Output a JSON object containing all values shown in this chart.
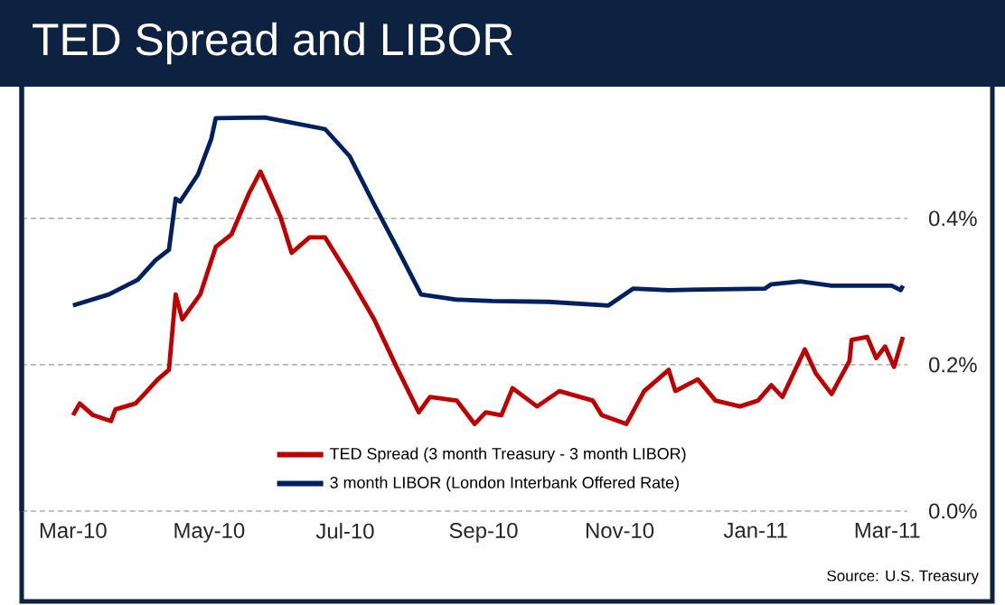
{
  "chart_data": {
    "type": "line",
    "title": "TED Spread and LIBOR",
    "annotations": [
      "Source: U.S. Treasury"
    ],
    "series": [
      {
        "name": "TED Spread (3 month Treasury - 3 month LIBOR)",
        "color": "#c00000",
        "x": [
          "2010-03-01",
          "2010-03-04",
          "2010-03-10",
          "2010-03-18",
          "2010-03-20",
          "2010-03-29",
          "2010-04-02",
          "2010-04-08",
          "2010-04-13",
          "2010-04-16",
          "2010-04-19",
          "2010-04-27",
          "2010-05-04",
          "2010-05-11",
          "2010-05-19",
          "2010-05-24",
          "2010-05-27",
          "2010-06-02",
          "2010-06-07",
          "2010-06-15",
          "2010-06-22",
          "2010-07-03",
          "2010-07-14",
          "2010-07-24",
          "2010-08-03",
          "2010-08-08",
          "2010-08-20",
          "2010-08-28",
          "2010-09-02",
          "2010-09-09",
          "2010-09-14",
          "2010-09-25",
          "2010-10-05",
          "2010-10-20",
          "2010-10-24",
          "2010-11-04",
          "2010-11-12",
          "2010-11-23",
          "2010-11-26",
          "2010-12-06",
          "2010-12-14",
          "2010-12-25",
          "2011-01-02",
          "2011-01-08",
          "2011-01-13",
          "2011-01-23",
          "2011-01-28",
          "2011-02-04",
          "2011-02-12",
          "2011-02-13",
          "2011-02-20",
          "2011-02-24",
          "2011-02-28",
          "2011-03-04",
          "2011-03-08"
        ],
        "values": [
          0.131,
          0.147,
          0.131,
          0.123,
          0.139,
          0.147,
          0.16,
          0.18,
          0.193,
          0.296,
          0.262,
          0.296,
          0.361,
          0.378,
          0.435,
          0.464,
          0.444,
          0.402,
          0.353,
          0.374,
          0.374,
          0.32,
          0.262,
          0.197,
          0.135,
          0.156,
          0.151,
          0.119,
          0.135,
          0.131,
          0.168,
          0.143,
          0.164,
          0.151,
          0.131,
          0.119,
          0.164,
          0.193,
          0.164,
          0.18,
          0.151,
          0.143,
          0.151,
          0.172,
          0.156,
          0.221,
          0.188,
          0.16,
          0.205,
          0.234,
          0.238,
          0.209,
          0.225,
          0.197,
          0.238
        ]
      },
      {
        "name": "3 month LIBOR (London Interbank Offered Rate)",
        "color": "#002060",
        "x": [
          "2010-03-01",
          "2010-03-17",
          "2010-03-30",
          "2010-04-07",
          "2010-04-13",
          "2010-04-16",
          "2010-04-18",
          "2010-04-26",
          "2010-05-02",
          "2010-05-04",
          "2010-05-26",
          "2010-06-22",
          "2010-07-03",
          "2010-07-14",
          "2010-07-24",
          "2010-08-04",
          "2010-08-20",
          "2010-09-05",
          "2010-09-30",
          "2010-10-27",
          "2010-11-07",
          "2010-11-23",
          "2011-01-05",
          "2011-01-08",
          "2011-01-21",
          "2011-02-04",
          "2011-03-03",
          "2011-03-07",
          "2011-03-08"
        ],
        "values": [
          0.281,
          0.296,
          0.316,
          0.343,
          0.357,
          0.427,
          0.423,
          0.46,
          0.509,
          0.537,
          0.538,
          0.522,
          0.485,
          0.419,
          0.361,
          0.296,
          0.289,
          0.287,
          0.286,
          0.281,
          0.304,
          0.302,
          0.304,
          0.31,
          0.314,
          0.308,
          0.308,
          0.302,
          0.308
        ]
      }
    ],
    "xlim": [
      "2010-02-06",
      "2011-03-10"
    ],
    "xticks": [
      {
        "value": "2010-03-01",
        "label": "Mar-10"
      },
      {
        "value": "2010-05-01",
        "label": "May-10"
      },
      {
        "value": "2010-07-01",
        "label": "Jul-10"
      },
      {
        "value": "2010-09-01",
        "label": "Sep-10"
      },
      {
        "value": "2010-11-01",
        "label": "Nov-10"
      },
      {
        "value": "2011-01-01",
        "label": "Jan-11"
      },
      {
        "value": "2011-03-01",
        "label": "Mar-11"
      }
    ],
    "ylim": [
      0,
      0.58
    ],
    "yticks": [
      {
        "value": 0,
        "label": "0.0%"
      },
      {
        "value": 0.2,
        "label": "0.2%"
      },
      {
        "value": 0.4,
        "label": "0.4%"
      }
    ],
    "grid": "y",
    "legend": "bottom",
    "marker": "none",
    "line_style": "solid"
  }
}
